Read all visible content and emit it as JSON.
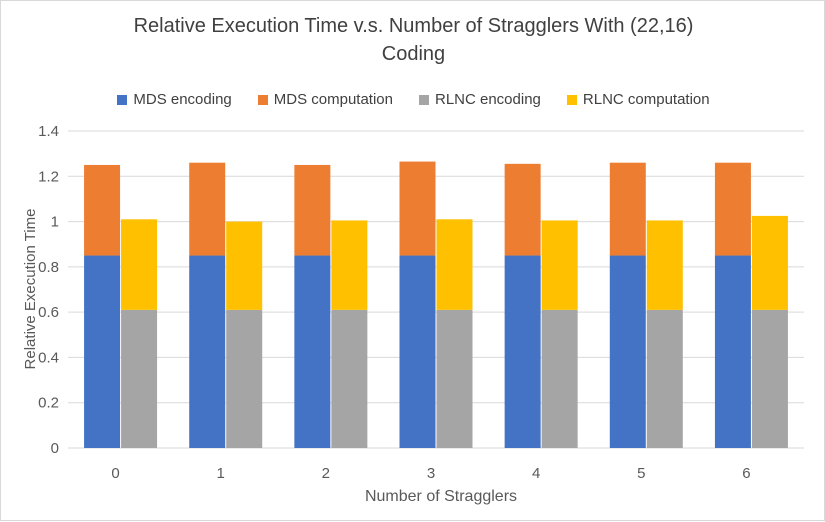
{
  "chart_data": {
    "type": "bar",
    "stacked": true,
    "title": "Relative Execution Time v.s. Number of Stragglers With (22,16) Coding",
    "title_line1": "Relative Execution Time v.s. Number of Stragglers With (22,16)",
    "title_line2": "Coding",
    "xlabel": "Number of Stragglers",
    "ylabel": "Relative Execution Time",
    "categories": [
      "0",
      "1",
      "2",
      "3",
      "4",
      "5",
      "6"
    ],
    "ylim": [
      0,
      1.4
    ],
    "yticks": [
      "0",
      "0.2",
      "0.4",
      "0.6",
      "0.8",
      "1",
      "1.2",
      "1.4"
    ],
    "grid": true,
    "legend_position": "top",
    "stacks": [
      {
        "group": "MDS",
        "series": [
          {
            "name": "MDS encoding",
            "color": "#4472c4",
            "values": [
              0.85,
              0.85,
              0.85,
              0.85,
              0.85,
              0.85,
              0.85
            ]
          },
          {
            "name": "MDS computation",
            "color": "#ed7d31",
            "values": [
              0.4,
              0.41,
              0.4,
              0.415,
              0.405,
              0.41,
              0.41
            ]
          }
        ]
      },
      {
        "group": "RLNC",
        "series": [
          {
            "name": "RLNC encoding",
            "color": "#a5a5a5",
            "values": [
              0.61,
              0.61,
              0.61,
              0.61,
              0.61,
              0.61,
              0.61
            ]
          },
          {
            "name": "RLNC computation",
            "color": "#ffc000",
            "values": [
              0.4,
              0.39,
              0.395,
              0.4,
              0.395,
              0.395,
              0.415
            ]
          }
        ]
      }
    ]
  }
}
